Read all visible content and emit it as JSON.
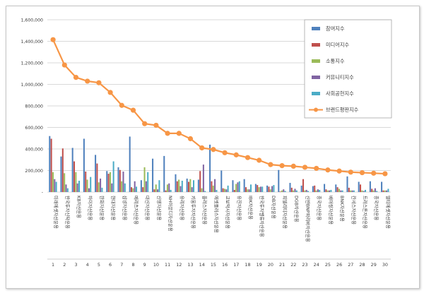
{
  "chart_data": {
    "type": "bar",
    "title": "",
    "xlabel": "",
    "ylabel": "",
    "ylim": [
      0,
      1600000
    ],
    "yticks": [
      "-",
      "200,000",
      "400,000",
      "600,000",
      "800,000",
      "1,000,000",
      "1,200,000",
      "1,400,000",
      "1,600,000"
    ],
    "grid": true,
    "legend_position": "top-right",
    "categories": [
      "1",
      "2",
      "3",
      "4",
      "5",
      "6",
      "7",
      "8",
      "9",
      "10",
      "11",
      "12",
      "13",
      "14",
      "15",
      "16",
      "17",
      "18",
      "19",
      "20",
      "21",
      "22",
      "23",
      "24",
      "25",
      "26",
      "27",
      "28",
      "29",
      "30"
    ],
    "company_labels": [
      "미래에셋자산운용",
      "한국투자신탁운용",
      "KB자산운용",
      "하이자산운용",
      "한화자산운용",
      "현대자산운용",
      "삼성자산운용",
      "메리츠자산운용",
      "대신자산운용",
      "신영자산운용",
      "NH아문디자산운용",
      "유리자산운용",
      "키움투자자산운용",
      "플러스자산운용",
      "에셋플러스자산운용",
      "교보악사자산운용",
      "유진자산운용",
      "IBK자산운용",
      "한국투자밸류자산운용",
      "DB자산운용",
      "피델리티자산운용",
      "DGB자산운용",
      "신한BNP파리바자산운용",
      "흥국자산운용",
      "베어링자산운용",
      "BNK자산운용",
      "칸서스자산운용",
      "트러스톤자산운용",
      "흥국자산운용",
      "멀티에셋자산운용"
    ],
    "series": [
      {
        "name": "참여지수",
        "color": "#4f81bd",
        "values": [
          520000,
          330000,
          410000,
          495000,
          345000,
          195000,
          230000,
          515000,
          110000,
          310000,
          335000,
          165000,
          125000,
          115000,
          440000,
          200000,
          110000,
          120000,
          75000,
          60000,
          205000,
          85000,
          60000,
          55000,
          75000,
          70000,
          145000,
          95000,
          100000,
          95000
        ]
      },
      {
        "name": "미디어지수",
        "color": "#c0504d",
        "values": [
          495000,
          405000,
          285000,
          190000,
          265000,
          170000,
          205000,
          45000,
          45000,
          25000,
          15000,
          100000,
          95000,
          195000,
          100000,
          35000,
          20000,
          45000,
          65000,
          50000,
          5000,
          40000,
          120000,
          60000,
          25000,
          45000,
          40000,
          70000,
          30000,
          15000
        ]
      },
      {
        "name": "소통지수",
        "color": "#9bbb59",
        "values": [
          185000,
          175000,
          185000,
          115000,
          90000,
          185000,
          100000,
          35000,
          230000,
          70000,
          70000,
          115000,
          120000,
          35000,
          60000,
          30000,
          75000,
          25000,
          45000,
          25000,
          15000,
          15000,
          15000,
          15000,
          15000,
          30000,
          15000,
          15000,
          15000,
          15000
        ]
      },
      {
        "name": "커뮤니티지수",
        "color": "#8064a2",
        "values": [
          120000,
          70000,
          80000,
          35000,
          125000,
          80000,
          190000,
          100000,
          100000,
          25000,
          80000,
          55000,
          45000,
          255000,
          120000,
          25000,
          90000,
          25000,
          50000,
          55000,
          25000,
          30000,
          20000,
          25000,
          15000,
          15000,
          15000,
          10000,
          35000,
          15000
        ]
      },
      {
        "name": "사회공헌지수",
        "color": "#4bacc6",
        "values": [
          95000,
          35000,
          105000,
          140000,
          40000,
          285000,
          80000,
          50000,
          185000,
          110000,
          20000,
          105000,
          110000,
          10000,
          20000,
          60000,
          100000,
          70000,
          50000,
          65000,
          10000,
          15000,
          10000,
          20000,
          20000,
          15000,
          15000,
          20000,
          10000,
          30000
        ]
      }
    ],
    "line_series": {
      "name": "브랜드평판지수",
      "color": "#f79646",
      "values": [
        1415000,
        1180000,
        1065000,
        1030000,
        1015000,
        925000,
        805000,
        760000,
        635000,
        620000,
        545000,
        545000,
        495000,
        410000,
        395000,
        365000,
        345000,
        320000,
        295000,
        255000,
        245000,
        240000,
        230000,
        220000,
        205000,
        195000,
        185000,
        180000,
        175000,
        170000
      ]
    }
  }
}
